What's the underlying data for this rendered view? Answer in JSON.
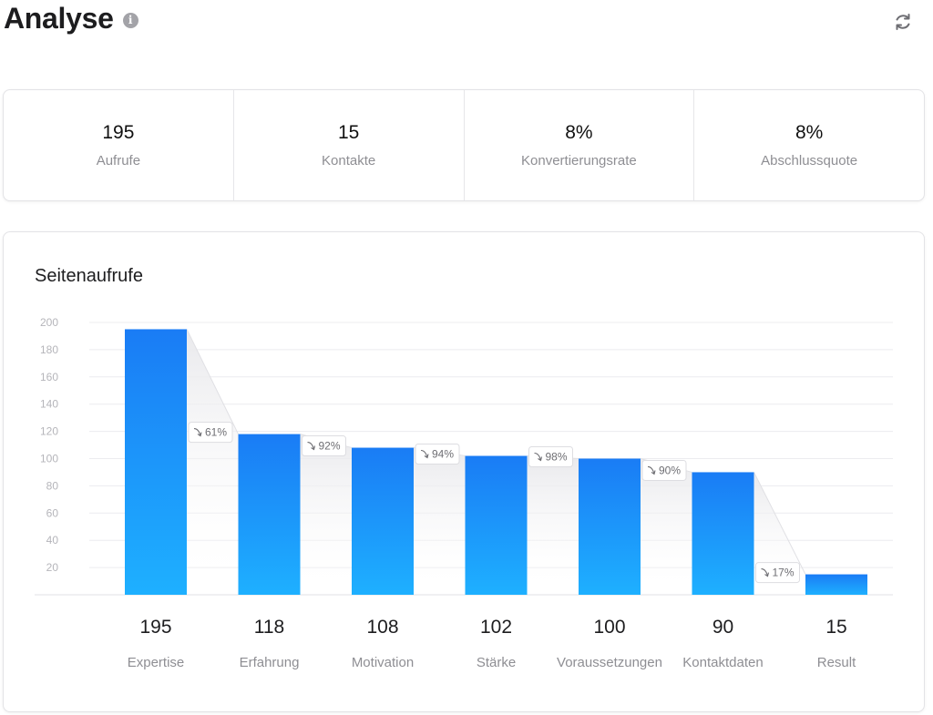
{
  "header": {
    "title": "Analyse",
    "info_icon": "info-icon",
    "refresh_icon": "refresh-icon"
  },
  "stats": [
    {
      "value": "195",
      "label": "Aufrufe"
    },
    {
      "value": "15",
      "label": "Kontakte"
    },
    {
      "value": "8%",
      "label": "Konvertierungsrate"
    },
    {
      "value": "8%",
      "label": "Abschlussquote"
    }
  ],
  "colors": {
    "bar_top": "#1a7cf5",
    "bar_bottom": "#1eb0ff",
    "grid": "#ececef",
    "muted_text": "#8e8e93"
  },
  "chart_data": {
    "type": "bar",
    "title": "Seitenaufrufe",
    "categories": [
      "Expertise",
      "Erfahrung",
      "Motivation",
      "Stärke",
      "Voraussetzungen",
      "Kontaktdaten",
      "Result"
    ],
    "values": [
      195,
      118,
      108,
      102,
      100,
      90,
      15
    ],
    "value_labels": [
      "195",
      "118",
      "108",
      "102",
      "100",
      "90",
      "15"
    ],
    "conversion_labels": [
      "61%",
      "92%",
      "94%",
      "98%",
      "90%",
      "17%"
    ],
    "yticks": [
      20,
      40,
      60,
      80,
      100,
      120,
      140,
      160,
      180,
      200
    ],
    "ylim": [
      0,
      200
    ],
    "grid": true
  }
}
